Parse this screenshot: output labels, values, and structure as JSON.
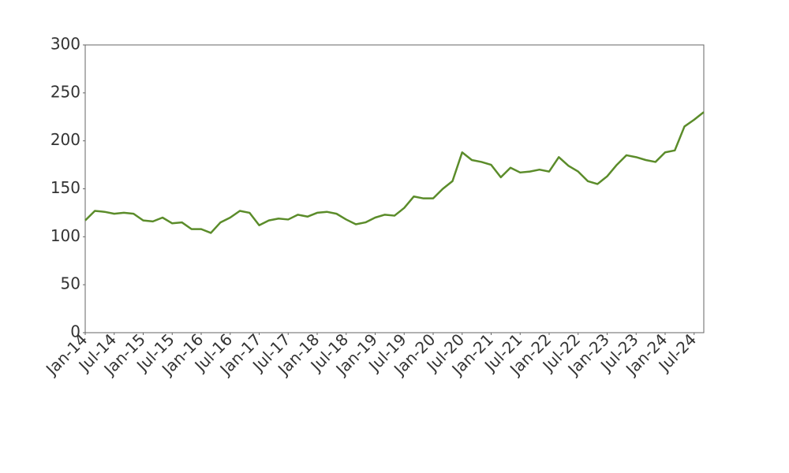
{
  "chart_data": {
    "type": "line",
    "x": [
      "2014-01",
      "2014-03",
      "2014-05",
      "2014-07",
      "2014-09",
      "2014-11",
      "2015-01",
      "2015-03",
      "2015-05",
      "2015-07",
      "2015-09",
      "2015-11",
      "2016-01",
      "2016-03",
      "2016-05",
      "2016-07",
      "2016-09",
      "2016-11",
      "2017-01",
      "2017-03",
      "2017-05",
      "2017-07",
      "2017-09",
      "2017-11",
      "2018-01",
      "2018-03",
      "2018-05",
      "2018-07",
      "2018-09",
      "2018-11",
      "2019-01",
      "2019-03",
      "2019-05",
      "2019-07",
      "2019-09",
      "2019-11",
      "2020-01",
      "2020-03",
      "2020-05",
      "2020-07",
      "2020-09",
      "2020-11",
      "2021-01",
      "2021-03",
      "2021-05",
      "2021-07",
      "2021-09",
      "2021-11",
      "2022-01",
      "2022-03",
      "2022-05",
      "2022-07",
      "2022-09",
      "2022-11",
      "2023-01",
      "2023-03",
      "2023-05",
      "2023-07",
      "2023-09",
      "2023-11",
      "2024-01",
      "2024-03",
      "2024-05",
      "2024-07",
      "2024-09"
    ],
    "values": [
      117,
      127,
      126,
      124,
      125,
      124,
      117,
      116,
      120,
      114,
      115,
      108,
      108,
      104,
      115,
      120,
      127,
      125,
      112,
      117,
      119,
      118,
      123,
      121,
      125,
      126,
      124,
      118,
      113,
      115,
      120,
      123,
      122,
      130,
      142,
      140,
      140,
      150,
      158,
      188,
      180,
      178,
      175,
      162,
      172,
      167,
      168,
      170,
      168,
      183,
      174,
      168,
      158,
      155,
      163,
      175,
      185,
      183,
      180,
      178,
      188,
      190,
      215,
      222,
      230
    ],
    "color": "#5b8c2a",
    "xlim": [
      "2014-01",
      "2024-09"
    ],
    "xticks": [
      {
        "value": "2014-01",
        "label": "Jan-14"
      },
      {
        "value": "2014-07",
        "label": "Jul-14"
      },
      {
        "value": "2015-01",
        "label": "Jan-15"
      },
      {
        "value": "2015-07",
        "label": "Jul-15"
      },
      {
        "value": "2016-01",
        "label": "Jan-16"
      },
      {
        "value": "2016-07",
        "label": "Jul-16"
      },
      {
        "value": "2017-01",
        "label": "Jan-17"
      },
      {
        "value": "2017-07",
        "label": "Jul-17"
      },
      {
        "value": "2018-01",
        "label": "Jan-18"
      },
      {
        "value": "2018-07",
        "label": "Jul-18"
      },
      {
        "value": "2019-01",
        "label": "Jan-19"
      },
      {
        "value": "2019-07",
        "label": "Jul-19"
      },
      {
        "value": "2020-01",
        "label": "Jan-20"
      },
      {
        "value": "2020-07",
        "label": "Jul-20"
      },
      {
        "value": "2021-01",
        "label": "Jan-21"
      },
      {
        "value": "2021-07",
        "label": "Jul-21"
      },
      {
        "value": "2022-01",
        "label": "Jan-22"
      },
      {
        "value": "2022-07",
        "label": "Jul-22"
      },
      {
        "value": "2023-01",
        "label": "Jan-23"
      },
      {
        "value": "2023-07",
        "label": "Jul-23"
      },
      {
        "value": "2024-01",
        "label": "Jan-24"
      },
      {
        "value": "2024-07",
        "label": "Jul-24"
      }
    ],
    "ylim": [
      0,
      300
    ],
    "yticks": [
      0,
      50,
      100,
      150,
      200,
      250,
      300
    ],
    "grid": false
  }
}
